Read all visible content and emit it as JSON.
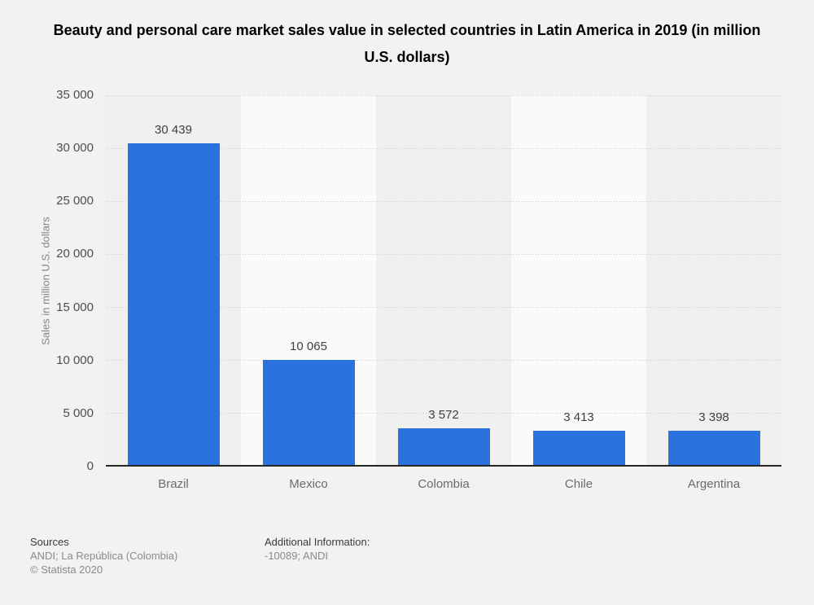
{
  "title": "Beauty and personal care market sales value in selected countries in Latin America in 2019 (in million U.S. dollars)",
  "chart_data": {
    "type": "bar",
    "categories": [
      "Brazil",
      "Mexico",
      "Colombia",
      "Chile",
      "Argentina"
    ],
    "values": [
      30439,
      10065,
      3572,
      3413,
      3398
    ],
    "value_labels": [
      "30 439",
      "10 065",
      "3 572",
      "3 413",
      "3 398"
    ],
    "title": "Beauty and personal care market sales value in selected countries in Latin America in 2019 (in million U.S. dollars)",
    "xlabel": "",
    "ylabel": "Sales in million U.S. dollars",
    "ylim": [
      0,
      35000
    ],
    "ytick_values": [
      0,
      5000,
      10000,
      15000,
      20000,
      25000,
      30000,
      35000
    ],
    "ytick_labels": [
      "0",
      "5 000",
      "10 000",
      "15 000",
      "20 000",
      "25 000",
      "30 000",
      "35 000"
    ],
    "grid": "horizontal-dotted",
    "legend": "none",
    "bar_color": "#2c72dd"
  },
  "colors": {
    "background": "#f2f2f2",
    "band_dark": "#f0f0f0",
    "band_light": "#fafafa",
    "bar": "#2c72dd",
    "gridline": "#c9c9c9",
    "axis_line": "#262626"
  },
  "footer": {
    "sources_heading": "Sources",
    "sources_line": "ANDI; La República (Colombia)",
    "copyright": "© Statista 2020",
    "additional_heading": "Additional Information:",
    "additional_line": "-10089; ANDI"
  }
}
